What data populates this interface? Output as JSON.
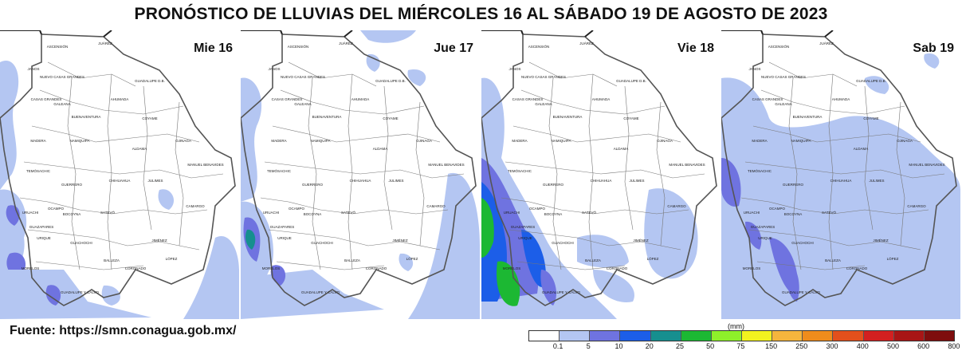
{
  "title": "PRONÓSTICO DE LLUVIAS DEL MIÉRCOLES 16 AL SÁBADO 19 DE AGOSTO DE 2023",
  "source": "Fuente: https://smn.conagua.gob.mx/",
  "panels": [
    {
      "day": "Mie 16"
    },
    {
      "day": "Jue 17"
    },
    {
      "day": "Vie 18"
    },
    {
      "day": "Sab 19"
    }
  ],
  "municipalities": [
    "ASCENSIÓN",
    "JUÁREZ",
    "JANOS",
    "GUADALUPE D.B.",
    "NUEVO CASAS GRANDES",
    "AHUMADA",
    "CASAS GRANDES",
    "GALEANA",
    "BUENAVENTURA",
    "COYAME",
    "MADERA",
    "NAMIQUIPA",
    "ALDAMA",
    "OJINAGA",
    "MANUEL BENAVIDES",
    "TEMÓSACHIC",
    "GUERRERO",
    "CHIHUAHUA",
    "JULIMES",
    "OCAMPO",
    "URUACHI",
    "BOCOYNA",
    "SATEVÓ",
    "CAMARGO",
    "GUAZAPARES",
    "URIQUE",
    "GUACHOCHI",
    "BALLEZA",
    "JIMÉNEZ",
    "MORELOS",
    "CORONADO",
    "LÓPEZ",
    "GUADALUPE Y CALVO"
  ],
  "legend": {
    "unit": "(mm)",
    "colors": [
      "#ffffff",
      "#b4c6f2",
      "#6f73e0",
      "#1c5ee8",
      "#168f8f",
      "#1cb833",
      "#8ef02a",
      "#f2f21f",
      "#f5b53d",
      "#ef8c1c",
      "#e3501c",
      "#d22020",
      "#a81515",
      "#7e0d0d"
    ],
    "ticks": [
      "0.1",
      "5",
      "10",
      "20",
      "25",
      "50",
      "75",
      "150",
      "250",
      "300",
      "400",
      "500",
      "600",
      "800"
    ]
  }
}
